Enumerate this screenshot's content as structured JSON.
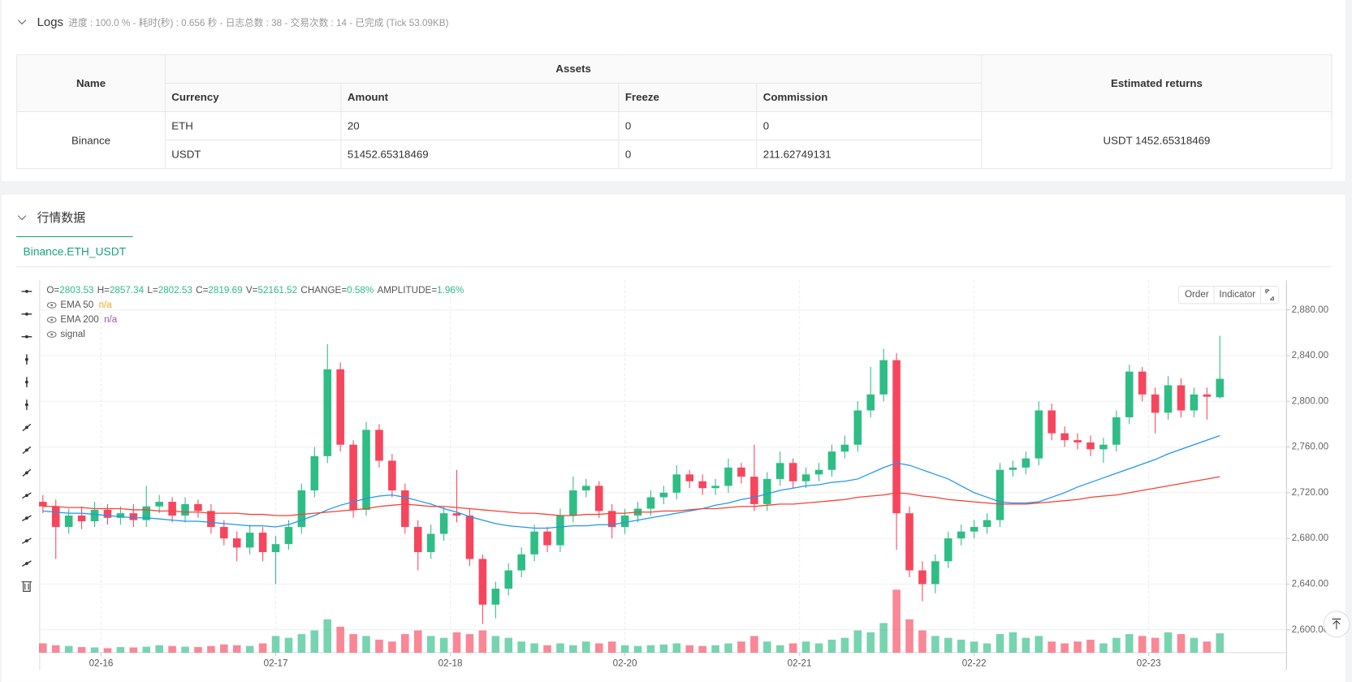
{
  "logs": {
    "title": "Logs",
    "summary": "进度 : 100.0 % - 耗时(秒) : 0.656 秒 - 日志总数 : 38 - 交易次数 : 14 - 已完成 (Tick 53.09KB)"
  },
  "table": {
    "header_top": [
      "Name",
      "Assets",
      "Estimated returns"
    ],
    "header_sub": [
      "Currency",
      "Amount",
      "Freeze",
      "Commission"
    ],
    "exchange": "Binance",
    "rows": [
      [
        "ETH",
        "20",
        "0",
        "0"
      ],
      [
        "USDT",
        "51452.65318469",
        "0",
        "211.62749131"
      ]
    ],
    "estimated_returns": "USDT 1452.65318469"
  },
  "market": {
    "title": "行情数据",
    "tab": "Binance.ETH_USDT",
    "buttons": [
      "Order",
      "Indicator"
    ]
  },
  "chart_data": {
    "type": "candlestick",
    "readout_labels": [
      "O=",
      "H=",
      "L=",
      "C=",
      "V="
    ],
    "change": {
      "label": "CHANGE=",
      "value": "0.58%"
    },
    "amplitude": {
      "label": "AMPLITUDE=",
      "value": "1.96%"
    },
    "signal_label": "signal",
    "up_color": "#2ebd85",
    "down_color": "#f6465d",
    "xlim": [
      -0.25,
      96.15
    ],
    "xticks": [
      {
        "value": 4.5,
        "label": "02-16"
      },
      {
        "value": 18,
        "label": "02-17"
      },
      {
        "value": 31.5,
        "label": "02-18"
      },
      {
        "value": 45,
        "label": "02-20"
      },
      {
        "value": 58.5,
        "label": "02-21"
      },
      {
        "value": 72,
        "label": "02-22"
      },
      {
        "value": 85.5,
        "label": "02-23"
      }
    ],
    "ylim": [
      2580,
      2906
    ],
    "yticks": [
      {
        "value": 2600,
        "label": "2,600.00"
      },
      {
        "value": 2640,
        "label": "2,640.00"
      },
      {
        "value": 2680,
        "label": "2,680.00"
      },
      {
        "value": 2720,
        "label": "2,720.00"
      },
      {
        "value": 2760,
        "label": "2,760.00"
      },
      {
        "value": 2800,
        "label": "2,800.00"
      },
      {
        "value": 2840,
        "label": "2,840.00"
      },
      {
        "value": 2880,
        "label": "2,880.00"
      }
    ],
    "grid": true,
    "open": [
      2712,
      2708,
      2690,
      2700,
      2695,
      2705,
      2698,
      2702,
      2696,
      2708,
      2712,
      2700,
      2710,
      2704,
      2690,
      2680,
      2672,
      2685,
      2668,
      2675,
      2690,
      2722,
      2752,
      2828,
      2762,
      2705,
      2775,
      2748,
      2722,
      2690,
      2668,
      2684,
      2702,
      2700,
      2662,
      2622,
      2636,
      2652,
      2666,
      2686,
      2674,
      2700,
      2722,
      2726,
      2704,
      2690,
      2700,
      2706,
      2716,
      2720,
      2736,
      2730,
      2724,
      2726,
      2742,
      2734,
      2710,
      2732,
      2746,
      2730,
      2736,
      2740,
      2756,
      2762,
      2792,
      2806,
      2836,
      2702,
      2652,
      2640,
      2660,
      2680,
      2686,
      2690,
      2696,
      2740,
      2742,
      2750,
      2792,
      2772,
      2766,
      2764,
      2758,
      2762,
      2786,
      2826,
      2806,
      2790,
      2814,
      2792,
      2806,
      2803.53
    ],
    "high": [
      2718,
      2714,
      2706,
      2708,
      2712,
      2710,
      2708,
      2710,
      2726,
      2718,
      2716,
      2716,
      2714,
      2710,
      2696,
      2686,
      2692,
      2690,
      2682,
      2696,
      2728,
      2760,
      2850,
      2834,
      2766,
      2782,
      2780,
      2754,
      2728,
      2696,
      2692,
      2708,
      2740,
      2706,
      2666,
      2642,
      2658,
      2672,
      2692,
      2690,
      2706,
      2734,
      2732,
      2730,
      2710,
      2706,
      2712,
      2722,
      2726,
      2744,
      2740,
      2736,
      2732,
      2750,
      2746,
      2762,
      2738,
      2756,
      2750,
      2742,
      2746,
      2762,
      2770,
      2800,
      2830,
      2846,
      2842,
      2708,
      2660,
      2666,
      2686,
      2692,
      2696,
      2702,
      2746,
      2748,
      2756,
      2800,
      2798,
      2778,
      2772,
      2770,
      2768,
      2792,
      2832,
      2830,
      2812,
      2822,
      2820,
      2812,
      2812,
      2857.34
    ],
    "low": [
      2702,
      2662,
      2684,
      2688,
      2690,
      2692,
      2692,
      2690,
      2690,
      2702,
      2694,
      2694,
      2698,
      2684,
      2674,
      2660,
      2666,
      2660,
      2640,
      2670,
      2684,
      2716,
      2746,
      2756,
      2698,
      2700,
      2742,
      2716,
      2684,
      2652,
      2662,
      2678,
      2694,
      2656,
      2605,
      2610,
      2630,
      2646,
      2660,
      2668,
      2668,
      2694,
      2716,
      2698,
      2680,
      2684,
      2694,
      2700,
      2710,
      2714,
      2724,
      2718,
      2718,
      2720,
      2728,
      2704,
      2704,
      2726,
      2724,
      2724,
      2730,
      2734,
      2750,
      2756,
      2786,
      2800,
      2670,
      2646,
      2625,
      2632,
      2654,
      2674,
      2680,
      2684,
      2690,
      2734,
      2736,
      2744,
      2766,
      2760,
      2758,
      2752,
      2746,
      2756,
      2780,
      2800,
      2772,
      2784,
      2786,
      2786,
      2784,
      2802.53
    ],
    "close": [
      2708,
      2690,
      2700,
      2695,
      2705,
      2698,
      2702,
      2696,
      2708,
      2712,
      2700,
      2710,
      2704,
      2690,
      2680,
      2672,
      2685,
      2668,
      2675,
      2690,
      2722,
      2752,
      2828,
      2762,
      2705,
      2775,
      2748,
      2722,
      2690,
      2668,
      2684,
      2702,
      2700,
      2662,
      2622,
      2636,
      2652,
      2666,
      2686,
      2674,
      2700,
      2722,
      2726,
      2704,
      2690,
      2700,
      2706,
      2716,
      2720,
      2736,
      2730,
      2724,
      2726,
      2742,
      2734,
      2710,
      2732,
      2746,
      2730,
      2736,
      2740,
      2756,
      2762,
      2792,
      2806,
      2836,
      2702,
      2652,
      2640,
      2660,
      2680,
      2686,
      2690,
      2696,
      2740,
      2742,
      2750,
      2792,
      2772,
      2766,
      2764,
      2758,
      2762,
      2786,
      2826,
      2806,
      2790,
      2814,
      2792,
      2806,
      2804,
      2819.69
    ],
    "volume": [
      25000,
      20000,
      18000,
      15000,
      14000,
      12000,
      15000,
      14000,
      16000,
      20000,
      18000,
      16000,
      15000,
      18000,
      22000,
      20000,
      18000,
      25000,
      45000,
      40000,
      50000,
      60000,
      90000,
      70000,
      50000,
      45000,
      35000,
      30000,
      50000,
      60000,
      45000,
      40000,
      55000,
      50000,
      60000,
      45000,
      40000,
      30000,
      25000,
      20000,
      25000,
      20000,
      30000,
      25000,
      30000,
      20000,
      18000,
      20000,
      22000,
      25000,
      20000,
      18000,
      20000,
      25000,
      30000,
      45000,
      30000,
      20000,
      25000,
      30000,
      25000,
      35000,
      40000,
      60000,
      55000,
      80000,
      170000,
      90000,
      60000,
      45000,
      40000,
      35000,
      30000,
      25000,
      50000,
      55000,
      40000,
      45000,
      30000,
      25000,
      30000,
      35000,
      25000,
      40000,
      50000,
      45000,
      40000,
      55000,
      50000,
      40000,
      30000,
      52161.52
    ],
    "series": [
      {
        "name": "EMA 50",
        "status": "n/a",
        "color": "#2196f3",
        "values": [
          2704,
          2703,
          2702,
          2702,
          2701,
          2700,
          2699,
          2698,
          2698,
          2697,
          2696,
          2695,
          2695,
          2694,
          2693,
          2692,
          2691,
          2691,
          2690,
          2692,
          2696,
          2700,
          2705,
          2709,
          2712,
          2715,
          2717,
          2718,
          2716,
          2713,
          2710,
          2706,
          2703,
          2699,
          2696,
          2693,
          2691,
          2690,
          2689,
          2689,
          2690,
          2691,
          2691,
          2692,
          2692,
          2694,
          2696,
          2698,
          2700,
          2702,
          2704,
          2706,
          2709,
          2711,
          2714,
          2716,
          2719,
          2722,
          2724,
          2726,
          2727,
          2729,
          2730,
          2732,
          2737,
          2742,
          2746,
          2744,
          2740,
          2736,
          2732,
          2726,
          2720,
          2716,
          2712,
          2711,
          2711,
          2712,
          2716,
          2720,
          2725,
          2729,
          2733,
          2737,
          2741,
          2745,
          2749,
          2754,
          2758,
          2762,
          2766,
          2770
        ]
      },
      {
        "name": "EMA 200",
        "status": "n/a",
        "color": "#f44336",
        "values": [
          2708,
          2708,
          2707,
          2707,
          2706,
          2706,
          2706,
          2705,
          2705,
          2704,
          2704,
          2703,
          2703,
          2702,
          2702,
          2702,
          2701,
          2701,
          2700,
          2700,
          2701,
          2702,
          2703,
          2704,
          2705,
          2706,
          2708,
          2709,
          2710,
          2709,
          2708,
          2708,
          2707,
          2706,
          2705,
          2704,
          2703,
          2702,
          2702,
          2701,
          2700,
          2700,
          2701,
          2701,
          2702,
          2702,
          2703,
          2703,
          2704,
          2704,
          2705,
          2706,
          2706,
          2707,
          2708,
          2708,
          2709,
          2710,
          2710,
          2711,
          2712,
          2713,
          2714,
          2716,
          2717,
          2718,
          2720,
          2719,
          2717,
          2716,
          2714,
          2713,
          2712,
          2711,
          2710,
          2710,
          2710,
          2711,
          2712,
          2713,
          2714,
          2716,
          2717,
          2718,
          2720,
          2722,
          2724,
          2726,
          2728,
          2730,
          2732,
          2734
        ]
      }
    ]
  }
}
